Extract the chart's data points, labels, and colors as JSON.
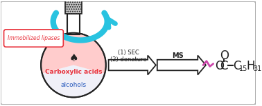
{
  "bg_color": "#ffffff",
  "border_color": "#aaaaaa",
  "arrow1_label_line1": "(1) SEC",
  "arrow1_label_line2": "(2) denature",
  "arrow2_label": "MS",
  "lipases_label": "Immobilized lipases",
  "carboxylic_label": "Carboxylic acids",
  "alcohols_label": "alcohols",
  "cyan_color": "#29c3e0",
  "red_color": "#e8303a",
  "blue_color": "#2255bb",
  "magenta_color": "#cc44aa",
  "dark_color": "#222222",
  "gray_color": "#888888"
}
